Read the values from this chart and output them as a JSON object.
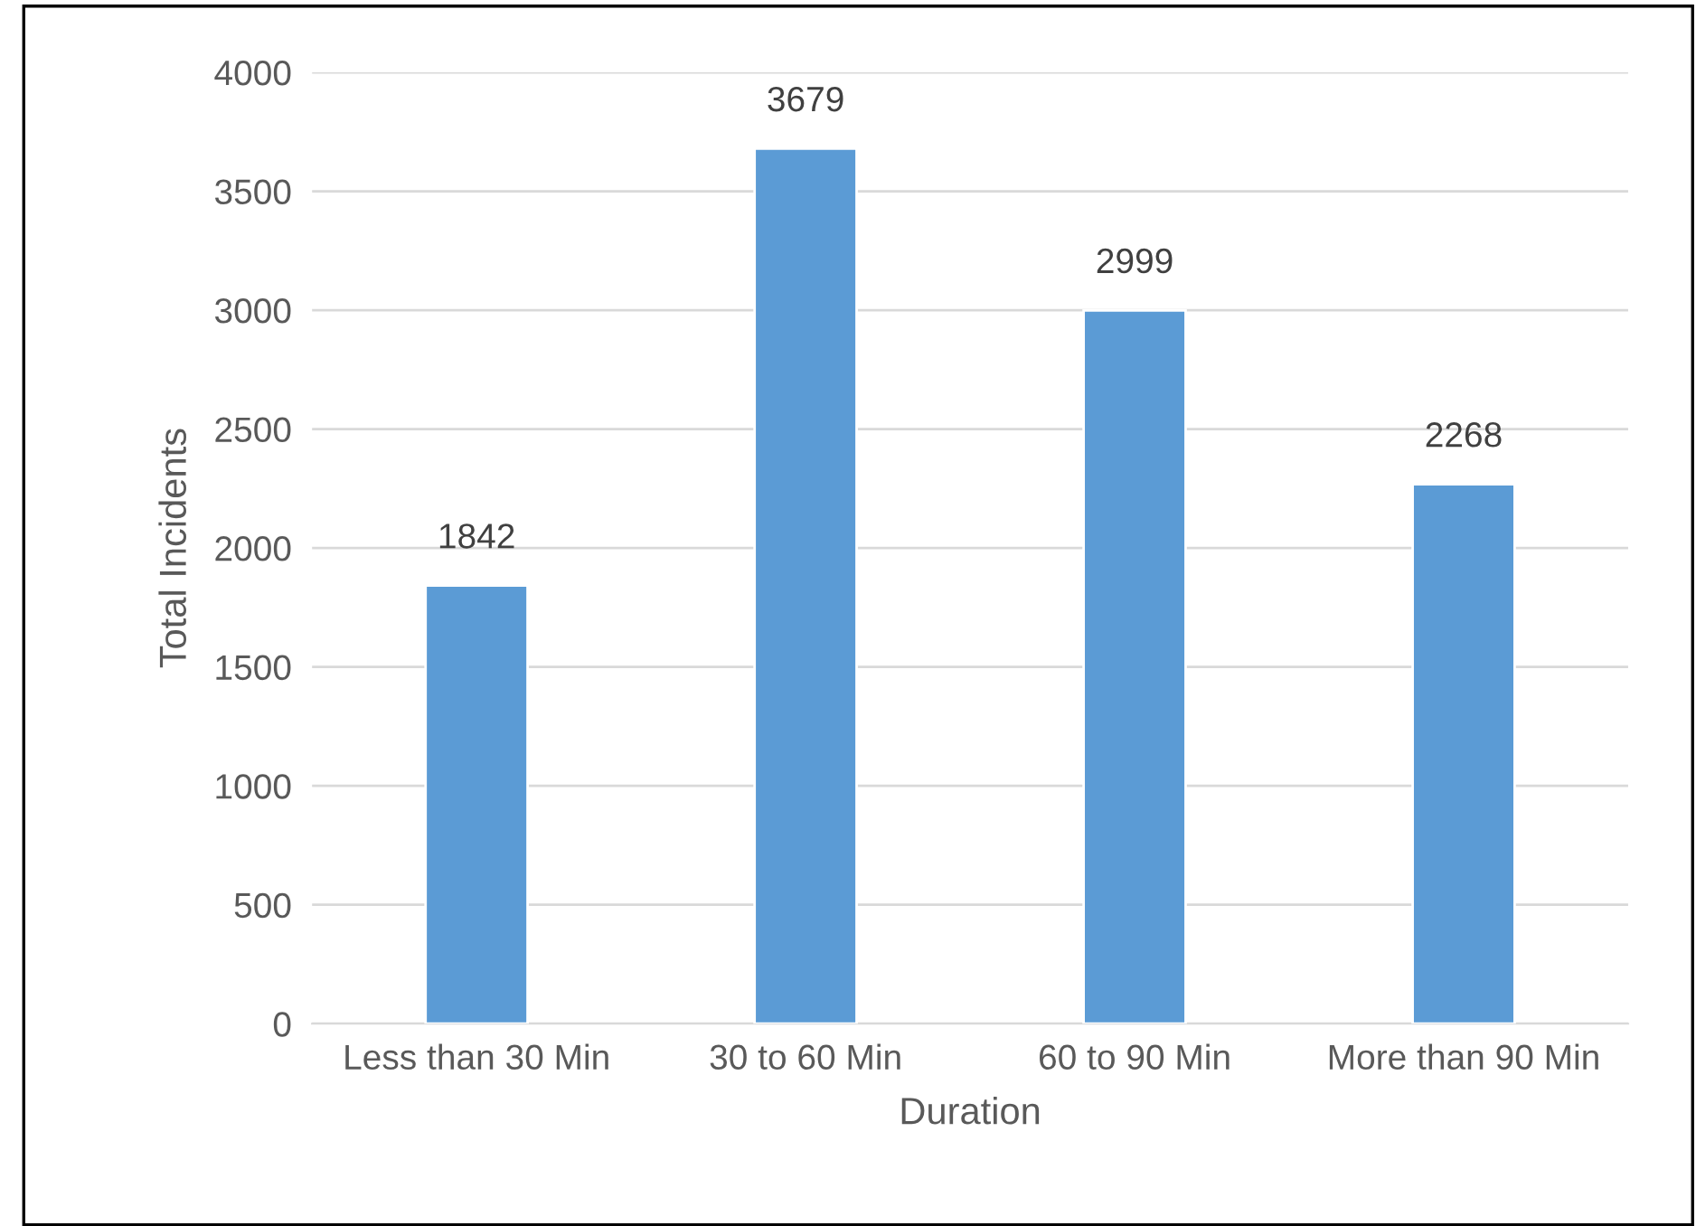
{
  "chart_data": {
    "type": "bar",
    "categories": [
      "Less than 30 Min",
      "30 to 60 Min",
      "60 to 90 Min",
      "More than 90 Min"
    ],
    "values": [
      1842,
      3679,
      2999,
      2268
    ],
    "color": "#5b9bd5",
    "xlabel": "Duration",
    "ylabel": "Total Incidents",
    "ylim": [
      0,
      4000
    ],
    "yticks": [
      0,
      500,
      1000,
      1500,
      2000,
      2500,
      3000,
      3500,
      4000
    ],
    "grid": "y",
    "data_labels": true
  }
}
